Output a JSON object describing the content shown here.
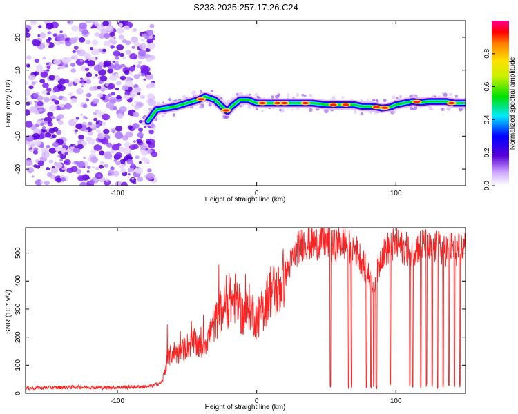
{
  "title": "S233.2025.257.17.26.C24",
  "chart_data": [
    {
      "type": "heatmap",
      "xlabel": "Height of straight line (km)",
      "ylabel": "Frequency (Hz)",
      "xlim": [
        -166,
        150
      ],
      "ylim": [
        -25,
        25
      ],
      "xticks": [
        -100,
        0,
        100
      ],
      "xtick_labels": [
        "-100",
        "0",
        "100"
      ],
      "yticks": [
        -20,
        -10,
        0,
        10,
        20
      ],
      "ytick_labels": [
        "-20",
        "-10",
        "0",
        "10",
        "20"
      ],
      "noise_region_x": [
        -166,
        -73
      ],
      "signal_track": {
        "x": [
          -78,
          -72,
          -65,
          -58,
          -50,
          -42,
          -37,
          -30,
          -25,
          -21,
          -18,
          -12,
          -6,
          0,
          10,
          20,
          30,
          40,
          50,
          60,
          70,
          76,
          82,
          86,
          90,
          96,
          100,
          106,
          112,
          118,
          124,
          130,
          136,
          142,
          150
        ],
        "y": [
          -5.5,
          -2,
          -1.5,
          -1,
          0,
          1,
          2,
          1,
          -1,
          -2.5,
          -1,
          1,
          1,
          0,
          0,
          0,
          0,
          0,
          -0.5,
          -0.5,
          -0.5,
          -1,
          -1,
          -1.2,
          -1.5,
          -1.2,
          -0.5,
          0,
          0.5,
          0.2,
          0.5,
          0.5,
          0.5,
          0,
          0
        ]
      },
      "colorbar": {
        "label": "Normalized spectral amplitude",
        "range": [
          0,
          1
        ],
        "ticks": [
          0.0,
          0.2,
          0.4,
          0.6,
          0.8
        ],
        "tick_labels": [
          "0.0",
          "0.2",
          "0.4",
          "0.6",
          "0.8"
        ],
        "colors": [
          "#ffffff",
          "#5a00d8",
          "#0000ff",
          "#00e8ff",
          "#00e000",
          "#ffe000",
          "#ff8000",
          "#ff0000",
          "#ff0090"
        ]
      }
    },
    {
      "type": "line",
      "xlabel": "Height of straight line (km)",
      "ylabel": "SNR (10 * v/v)",
      "xlim": [
        -166,
        150
      ],
      "ylim": [
        0,
        590
      ],
      "xticks": [
        -100,
        0,
        100
      ],
      "xtick_labels": [
        "-100",
        "0",
        "100"
      ],
      "yticks": [
        0,
        100,
        200,
        300,
        400,
        500
      ],
      "ytick_labels": [
        "0",
        "100",
        "200",
        "300",
        "400",
        "500"
      ],
      "color": "#ff2020",
      "series": [
        {
          "name": "SNR",
          "x": [
            -166,
            -150,
            -130,
            -110,
            -90,
            -75,
            -68,
            -64,
            -60,
            -56,
            -50,
            -45,
            -40,
            -35,
            -30,
            -25,
            -20,
            -15,
            -10,
            -5,
            0,
            5,
            10,
            15,
            20,
            25,
            30,
            35,
            40,
            45,
            50,
            55,
            60,
            65,
            70,
            75,
            80,
            85,
            90,
            95,
            100,
            105,
            110,
            115,
            120,
            125,
            130,
            135,
            140,
            145,
            150
          ],
          "y": [
            18,
            20,
            22,
            20,
            22,
            25,
            40,
            120,
            150,
            140,
            170,
            180,
            160,
            200,
            250,
            300,
            320,
            340,
            270,
            310,
            260,
            300,
            370,
            360,
            420,
            470,
            520,
            540,
            530,
            540,
            540,
            520,
            540,
            530,
            520,
            480,
            420,
            390,
            500,
            520,
            530,
            520,
            510,
            520,
            530,
            510,
            520,
            510,
            520,
            510,
            520
          ]
        }
      ],
      "dropouts_x": [
        53,
        66,
        68,
        79,
        82,
        84,
        86,
        96,
        110,
        112,
        118,
        122,
        126,
        130,
        134,
        138,
        142,
        146
      ]
    }
  ]
}
